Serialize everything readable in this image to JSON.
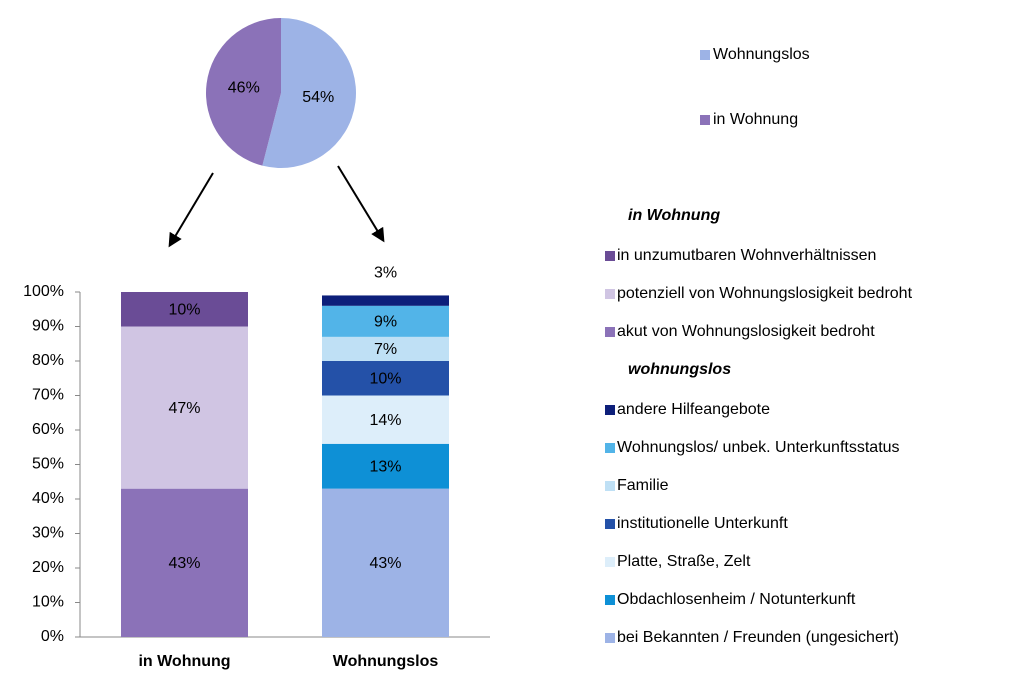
{
  "chart_data": [
    {
      "type": "pie",
      "categories": [
        "Wohnungslos",
        "in Wohnung"
      ],
      "values": [
        54,
        46
      ],
      "value_labels": [
        "54%",
        "46%"
      ],
      "colors": [
        "#9db3e6",
        "#8b72b8"
      ]
    },
    {
      "type": "stacked_bar",
      "categories": [
        "in Wohnung",
        "Wohnungslos"
      ],
      "ylim": [
        0,
        100
      ],
      "yticks": [
        {
          "value": 0,
          "label": "0%"
        },
        {
          "value": 10,
          "label": "10%"
        },
        {
          "value": 20,
          "label": "20%"
        },
        {
          "value": 30,
          "label": "30%"
        },
        {
          "value": 40,
          "label": "40%"
        },
        {
          "value": 50,
          "label": "50%"
        },
        {
          "value": 60,
          "label": "60%"
        },
        {
          "value": 70,
          "label": "70%"
        },
        {
          "value": 80,
          "label": "80%"
        },
        {
          "value": 90,
          "label": "90%"
        },
        {
          "value": 100,
          "label": "100%"
        }
      ],
      "groups": [
        {
          "name": "in Wohnung",
          "series": [
            {
              "name": "akut von Wohnungslosigkeit bedroht",
              "color": "#8b72b8",
              "values": [
                43,
                null
              ],
              "value_labels": [
                "43%",
                null
              ]
            },
            {
              "name": "potenziell von Wohnungslosigkeit bedroht",
              "color": "#d0c5e3",
              "values": [
                47,
                null
              ],
              "value_labels": [
                "47%",
                null
              ]
            },
            {
              "name": "in unzumutbaren Wohnverhältnissen",
              "color": "#6a4c96",
              "values": [
                10,
                null
              ],
              "value_labels": [
                "10%",
                null
              ]
            }
          ]
        },
        {
          "name": "wohnungslos",
          "series": [
            {
              "name": "bei Bekannten / Freunden (ungesichert)",
              "color": "#9db3e6",
              "values": [
                null,
                43
              ],
              "value_labels": [
                null,
                "43%"
              ]
            },
            {
              "name": "Obdachlosenheim / Notunterkunft",
              "color": "#0e90d6",
              "values": [
                null,
                13
              ],
              "value_labels": [
                null,
                "13%"
              ]
            },
            {
              "name": "Platte, Straße, Zelt",
              "color": "#ddeefa",
              "values": [
                null,
                14
              ],
              "value_labels": [
                null,
                "14%"
              ]
            },
            {
              "name": "institutionelle Unterkunft",
              "color": "#2451a8",
              "values": [
                null,
                10
              ],
              "value_labels": [
                null,
                "10%"
              ]
            },
            {
              "name": "Familie",
              "color": "#bfe0f5",
              "values": [
                null,
                7
              ],
              "value_labels": [
                null,
                "7%"
              ]
            },
            {
              "name": "Wohnungslos/ unbek. Unterkunftsstatus",
              "color": "#52b4e8",
              "values": [
                null,
                9
              ],
              "value_labels": [
                null,
                "9%"
              ]
            },
            {
              "name": "andere Hilfeangebote",
              "color": "#0d1f7a",
              "values": [
                null,
                3
              ],
              "value_labels": [
                null,
                "3%"
              ]
            }
          ]
        }
      ]
    }
  ]
}
